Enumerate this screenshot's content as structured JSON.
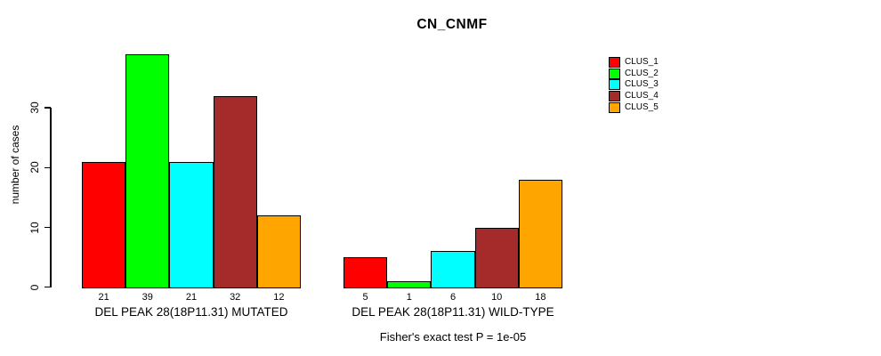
{
  "title": "CN_CNMF",
  "footer": "Fisher's exact test P = 1e-05",
  "colors": {
    "clus_1": "#FF0000",
    "clus_2": "#00FF00",
    "clus_3": "#00FFFF",
    "clus_4": "#A52A2A",
    "clus_5": "#FFA500",
    "axis": "#000000",
    "background": "#FFFFFF"
  },
  "chart_data": {
    "type": "bar",
    "title": "CN_CNMF",
    "xlabel": "",
    "ylabel": "number of cases",
    "yticks": [
      0,
      10,
      20,
      30
    ],
    "ylim": [
      0,
      39
    ],
    "grid": false,
    "legend_position": "right",
    "series_colors": [
      "#FF0000",
      "#00FF00",
      "#00FFFF",
      "#A52A2A",
      "#FFA500"
    ],
    "series_names": [
      "CLUS_1",
      "CLUS_2",
      "CLUS_3",
      "CLUS_4",
      "CLUS_5"
    ],
    "groups": [
      {
        "label": "DEL PEAK 28(18P11.31) MUTATED",
        "values": [
          21,
          39,
          21,
          32,
          12
        ]
      },
      {
        "label": "DEL PEAK 28(18P11.31) WILD-TYPE",
        "values": [
          5,
          1,
          6,
          10,
          18
        ]
      }
    ],
    "legend": [
      {
        "label": "CLUS_1",
        "color": "#FF0000"
      },
      {
        "label": "CLUS_2",
        "color": "#00FF00"
      },
      {
        "label": "CLUS_3",
        "color": "#00FFFF"
      },
      {
        "label": "CLUS_4",
        "color": "#A52A2A"
      },
      {
        "label": "CLUS_5",
        "color": "#FFA500"
      }
    ],
    "footer": "Fisher's exact test P = 1e-05"
  }
}
